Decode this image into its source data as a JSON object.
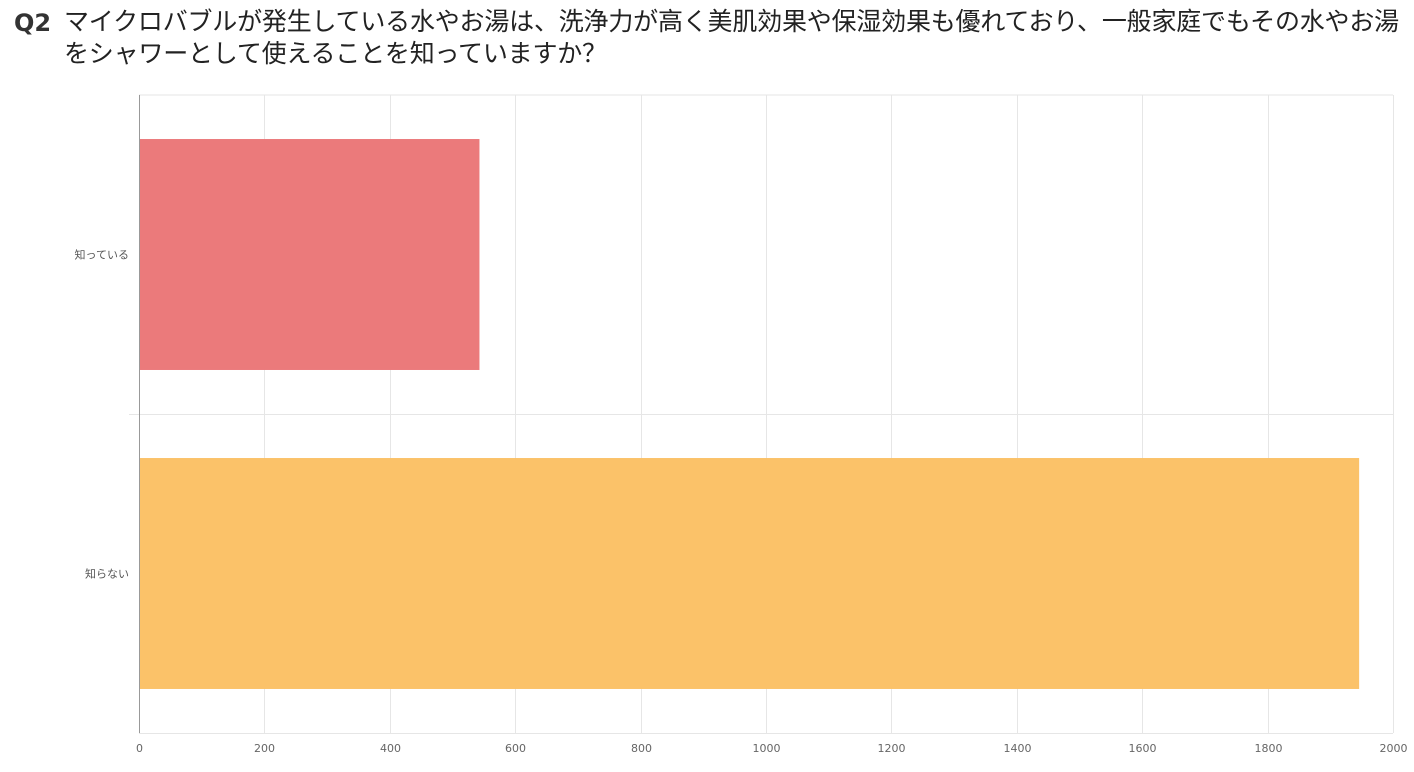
{
  "question": {
    "number": "Q2",
    "text": "マイクロバブルが発生している水やお湯は、洗浄力が高く美肌効果や保湿効果も優れており、一般家庭でもその水やお湯をシャワーとして使えることを知っていますか？"
  },
  "chart_data": {
    "type": "bar",
    "orientation": "horizontal",
    "categories": [
      "知っている",
      "知らない"
    ],
    "values": [
      543,
      1946
    ],
    "colors": [
      "#eb7a7b",
      "#fbc269"
    ],
    "title": "",
    "xlabel": "",
    "ylabel": "",
    "xlim": [
      0,
      2000
    ],
    "xticks": [
      "0",
      "200",
      "400",
      "600",
      "800",
      "1000",
      "1200",
      "1400",
      "1600",
      "1800",
      "2000"
    ],
    "grid": true,
    "legend": "none"
  }
}
